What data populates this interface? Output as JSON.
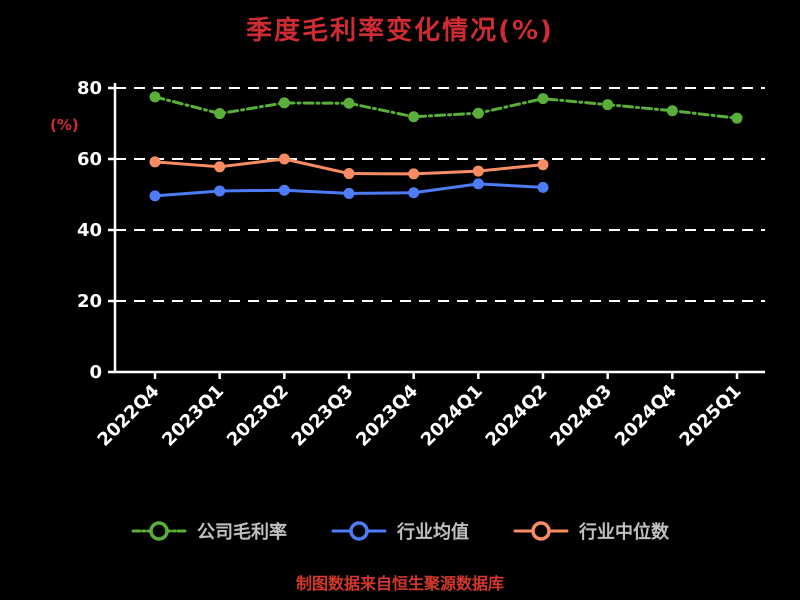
{
  "title": "季度毛利率变化情况(%)",
  "y_axis_label": "(%)",
  "footer_note": "制图数据来自恒生聚源数据库",
  "colors": {
    "background": "#000000",
    "title": "#cf2b33",
    "axis": "#ffffff",
    "tick_label": "#ffffff",
    "legend_label": "#c0c0c0",
    "footer": "#d3382b",
    "series_company_margin": "#5aaf3a",
    "series_industry_mean": "#4d7cf6",
    "series_industry_median": "#fa8c64"
  },
  "chart_data": {
    "type": "line",
    "title": "季度毛利率变化情况(%)",
    "ylabel": "(%)",
    "categories": [
      "2022Q4",
      "2023Q1",
      "2023Q2",
      "2023Q3",
      "2023Q4",
      "2024Q1",
      "2024Q2",
      "2024Q3",
      "2024Q4",
      "2025Q1"
    ],
    "series": [
      {
        "name": "公司毛利率",
        "color": "#5aaf3a",
        "line_style": "dashdot",
        "values": [
          77.5,
          72.8,
          75.8,
          75.7,
          71.9,
          72.9,
          77.0,
          75.3,
          73.6,
          71.5
        ]
      },
      {
        "name": "行业均值",
        "color": "#4d7cf6",
        "line_style": "solid",
        "values": [
          49.6,
          51.0,
          51.2,
          50.3,
          50.5,
          53.0,
          52.0
        ]
      },
      {
        "name": "行业中位数",
        "color": "#fa8c64",
        "line_style": "solid",
        "values": [
          59.2,
          57.8,
          60.0,
          55.9,
          55.8,
          56.6,
          58.4
        ]
      }
    ],
    "ylim": [
      0,
      80
    ],
    "yticks": [
      0,
      20,
      40,
      60,
      80
    ],
    "grid": true,
    "grid_style": "dashed",
    "legend_position": "bottom",
    "x_tick_rotation": -45
  }
}
